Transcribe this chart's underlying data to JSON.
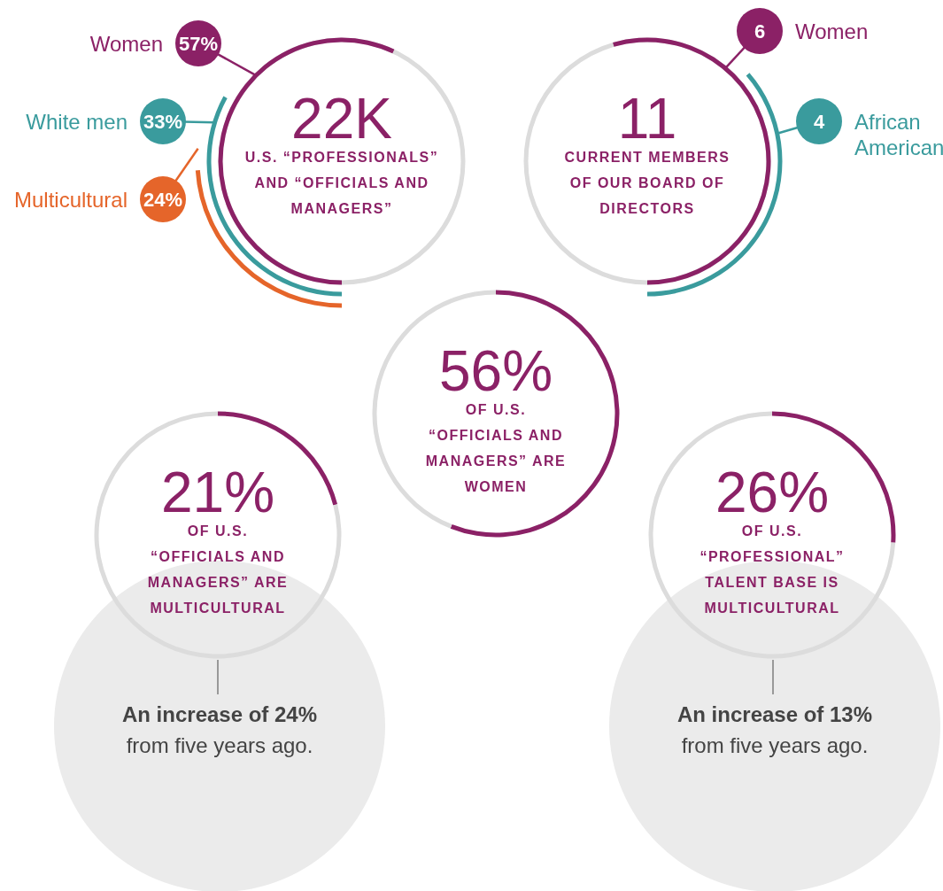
{
  "chart_data": [
    {
      "type": "other",
      "title": "22K",
      "subtitle": "U.S. “PROFESSIONALS” AND “OFFICIALS AND MANAGERS”",
      "categories": [
        "Women",
        "White men",
        "Multicultural"
      ],
      "values": [
        57,
        33,
        24
      ],
      "value_labels": [
        "57%",
        "33%",
        "24%"
      ],
      "colors": [
        "#8b2166",
        "#3a9b9d",
        "#e5652a"
      ]
    },
    {
      "type": "other",
      "title": "11",
      "subtitle": "CURRENT MEMBERS OF OUR BOARD OF DIRECTORS",
      "categories": [
        "Women",
        "African American"
      ],
      "values": [
        6,
        4
      ],
      "data_labels": true,
      "colors": [
        "#8b2166",
        "#3a9b9d"
      ]
    },
    {
      "type": "donut",
      "subtitle": "OF U.S. “OFFICIALS AND MANAGERS” ARE WOMEN",
      "categories": [
        null,
        null
      ],
      "values": [
        56,
        44
      ],
      "value_labels": [
        "56%",
        null
      ],
      "colors": [
        "#8b2166",
        "#dcdcdc"
      ]
    },
    {
      "type": "donut",
      "subtitle": "OF U.S. “OFFICIALS AND MANAGERS” ARE MULTICULTURAL",
      "categories": [
        null,
        null
      ],
      "values": [
        21,
        79
      ],
      "value_labels": [
        "21%",
        null
      ],
      "colors": [
        "#8b2166",
        "#dcdcdc"
      ],
      "annotations": [
        "An increase of 24%",
        "from five years ago."
      ]
    },
    {
      "type": "donut",
      "subtitle": "OF U.S. “PROFESSIONAL” TALENT BASE IS MULTICULTURAL",
      "categories": [
        null,
        null
      ],
      "values": [
        26,
        74
      ],
      "value_labels": [
        "26%",
        null
      ],
      "colors": [
        "#8b2166",
        "#dcdcdc"
      ],
      "annotations": [
        "An increase of 13%",
        "from five years ago."
      ]
    }
  ]
}
